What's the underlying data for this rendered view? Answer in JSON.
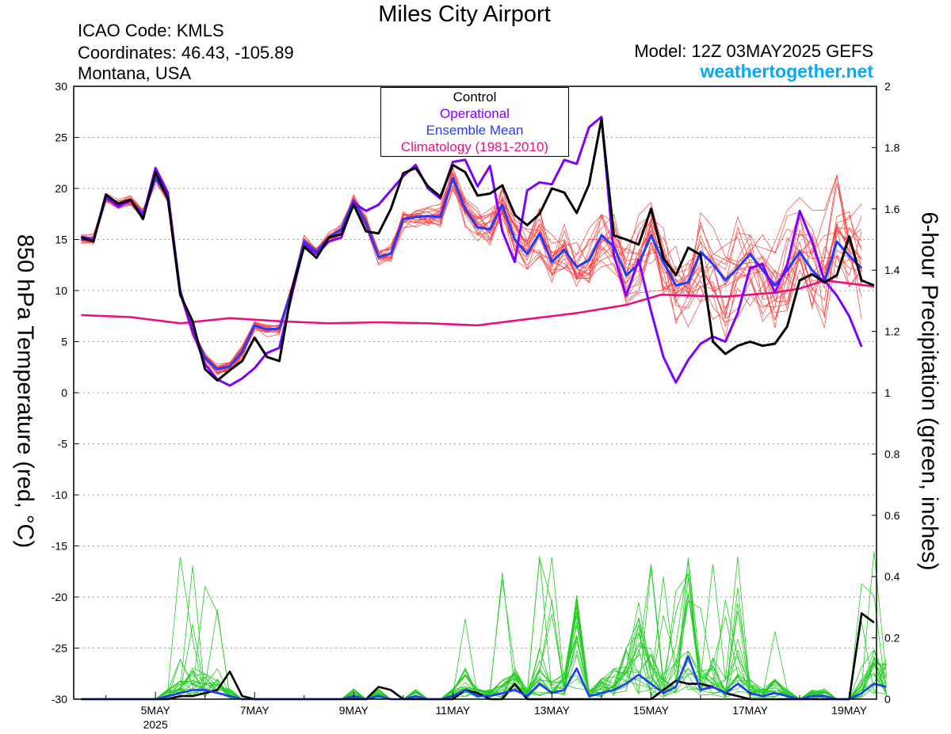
{
  "header": {
    "title": "Miles City Airport",
    "icao": "ICAO Code: KMLS",
    "coordinates": "Coordinates: 46.43, -105.89",
    "region": "Montana, USA",
    "model": "Model: 12Z 03MAY2025 GEFS",
    "site": "weathertogether.net"
  },
  "chart_data": {
    "type": "line",
    "ylabel_left": "850 hPa Temperature (red, °C)",
    "ylabel_right": "6-hour Precipitation (green, inches)",
    "x_unit": "days since 3 May 00Z",
    "xlim": [
      0.35,
      16.55
    ],
    "ylim_left": [
      -30,
      30
    ],
    "ylim_right": [
      0,
      2
    ],
    "y_ticks_left": [
      30,
      25,
      20,
      15,
      10,
      5,
      0,
      -5,
      -10,
      -15,
      -20,
      -25,
      -30
    ],
    "y_ticks_right": [
      "2",
      "1.8",
      "1.6",
      "1.4",
      "1.2",
      "1",
      "0.8",
      "0.6",
      "0.4",
      "0.2",
      "0"
    ],
    "x_ticks": [
      {
        "x": 2,
        "label": "5MAY",
        "sub": "2025"
      },
      {
        "x": 4,
        "label": "7MAY",
        "sub": ""
      },
      {
        "x": 6,
        "label": "9MAY",
        "sub": ""
      },
      {
        "x": 8,
        "label": "11MAY",
        "sub": ""
      },
      {
        "x": 10,
        "label": "13MAY",
        "sub": ""
      },
      {
        "x": 12,
        "label": "15MAY",
        "sub": ""
      },
      {
        "x": 14,
        "label": "17MAY",
        "sub": ""
      },
      {
        "x": 16,
        "label": "19MAY",
        "sub": ""
      }
    ],
    "grid": "horizontal dotted",
    "legend": [
      "Control",
      "Operational",
      "Ensemble Mean",
      "Climatology (1981-2010)"
    ],
    "colors": {
      "control": "#000000",
      "operational": "#7f00ff",
      "mean": "#1f3cff",
      "climatology": "#e8117f",
      "members_temp": "#ff3b3b",
      "members_precip": "#22cc22"
    },
    "series": [
      {
        "name": "Control",
        "axis": "left",
        "x0": 0.5,
        "dx": 0.25,
        "values": [
          15.2,
          14.8,
          19.4,
          18.5,
          18.9,
          17.0,
          21.6,
          19.0,
          9.6,
          7.0,
          2.3,
          1.2,
          2.2,
          3.1,
          5.4,
          3.5,
          3.1,
          10.0,
          14.3,
          13.2,
          15.2,
          15.5,
          18.4,
          15.8,
          15.6,
          18.0,
          21.5,
          22.0,
          20.2,
          19.2,
          22.3,
          21.6,
          19.3,
          19.5,
          20.3,
          17.4,
          16.4,
          17.5,
          20.0,
          19.6,
          17.6,
          20.4,
          26.8,
          15.4,
          15.0,
          14.5,
          18.0,
          13.2,
          11.5,
          14.2,
          13.5,
          5.0,
          3.8,
          4.6,
          5.0,
          4.6,
          4.8,
          6.5,
          11.0,
          11.6,
          10.8,
          11.5,
          15.3,
          11.0,
          10.5
        ]
      },
      {
        "name": "Operational",
        "axis": "left",
        "x0": 0.5,
        "dx": 0.25,
        "values": [
          15.3,
          15.0,
          19.2,
          18.2,
          18.8,
          17.3,
          22.0,
          19.6,
          9.8,
          6.0,
          2.8,
          1.3,
          0.7,
          1.4,
          2.4,
          3.9,
          4.4,
          9.5,
          14.5,
          13.6,
          14.8,
          15.2,
          18.6,
          17.8,
          18.4,
          19.8,
          21.2,
          22.3,
          20.0,
          19.0,
          22.6,
          22.8,
          20.2,
          22.2,
          15.8,
          12.8,
          19.8,
          20.6,
          20.4,
          22.8,
          22.4,
          26.0,
          27.0,
          13.5,
          9.5,
          13.0,
          8.0,
          3.5,
          1.0,
          3.2,
          4.8,
          5.5,
          5.0,
          7.8,
          12.2,
          12.6,
          9.8,
          12.5,
          17.8,
          14.8,
          11.0,
          9.5,
          7.5,
          4.5
        ]
      },
      {
        "name": "Ensemble Mean",
        "axis": "left",
        "x0": 0.5,
        "dx": 0.25,
        "values": [
          15.0,
          15.0,
          19.0,
          18.5,
          18.8,
          17.5,
          21.0,
          19.2,
          10.0,
          6.0,
          3.4,
          2.3,
          2.6,
          4.0,
          6.6,
          6.2,
          6.3,
          10.0,
          14.8,
          13.8,
          15.2,
          16.0,
          18.8,
          16.6,
          13.3,
          13.6,
          17.0,
          17.2,
          17.3,
          17.2,
          21.0,
          18.0,
          16.2,
          16.0,
          18.4,
          15.0,
          13.6,
          15.6,
          12.8,
          14.0,
          12.3,
          13.0,
          15.4,
          14.3,
          11.5,
          12.6,
          15.4,
          12.8,
          10.5,
          10.8,
          13.8,
          12.6,
          11.0,
          12.2,
          13.6,
          12.0,
          10.5,
          12.0,
          13.8,
          12.0,
          10.8,
          14.8,
          13.4,
          12.2
        ]
      },
      {
        "name": "Climatology (1981-2010)",
        "axis": "left",
        "points": [
          [
            0.5,
            7.6
          ],
          [
            1.5,
            7.4
          ],
          [
            2.5,
            6.8
          ],
          [
            3.5,
            7.3
          ],
          [
            4.5,
            7.0
          ],
          [
            5.5,
            6.8
          ],
          [
            6.5,
            6.9
          ],
          [
            7.5,
            6.8
          ],
          [
            8.5,
            6.6
          ],
          [
            9.5,
            7.2
          ],
          [
            10.5,
            7.8
          ],
          [
            11.5,
            8.6
          ],
          [
            12.2,
            9.6
          ],
          [
            13.5,
            9.4
          ],
          [
            14.5,
            9.8
          ],
          [
            15.0,
            10.2
          ],
          [
            15.5,
            11.0
          ],
          [
            16.5,
            10.4
          ]
        ]
      },
      {
        "name": "Control precip",
        "axis": "right",
        "x0": 0.5,
        "dx": 0.25,
        "values": [
          0,
          0,
          0,
          0,
          0,
          0,
          0,
          0,
          0.01,
          0.01,
          0.02,
          0.03,
          0.09,
          0.01,
          0,
          0,
          0,
          0,
          0,
          0,
          0,
          0,
          0,
          0,
          0.04,
          0.03,
          0,
          0,
          0,
          0,
          0,
          0.03,
          0.02,
          0,
          0,
          0.05,
          0,
          0,
          0,
          0,
          0,
          0,
          0,
          0,
          0,
          0,
          0,
          0.03,
          0.06,
          0.05,
          0.05,
          0.04,
          0.02,
          0.01,
          0,
          0,
          0,
          0,
          0,
          0,
          0,
          0,
          0,
          0.28,
          0.25
        ]
      },
      {
        "name": "Mean precip",
        "axis": "right",
        "x0": 0.5,
        "dx": 0.25,
        "values": [
          0,
          0,
          0,
          0,
          0,
          0,
          0,
          0.01,
          0.02,
          0.03,
          0.03,
          0.02,
          0.01,
          0,
          0,
          0,
          0,
          0,
          0,
          0,
          0,
          0,
          0.01,
          0,
          0.01,
          0,
          0,
          0.01,
          0,
          0,
          0.01,
          0.03,
          0.01,
          0.01,
          0.02,
          0.03,
          0.01,
          0.05,
          0.02,
          0.03,
          0.1,
          0.01,
          0.02,
          0.03,
          0.05,
          0.08,
          0.05,
          0.02,
          0.04,
          0.14,
          0.03,
          0.04,
          0.02,
          0.05,
          0.02,
          0.01,
          0.02,
          0.01,
          0,
          0.01,
          0.01,
          0,
          0,
          0.02,
          0.05,
          0.04
        ]
      }
    ]
  }
}
